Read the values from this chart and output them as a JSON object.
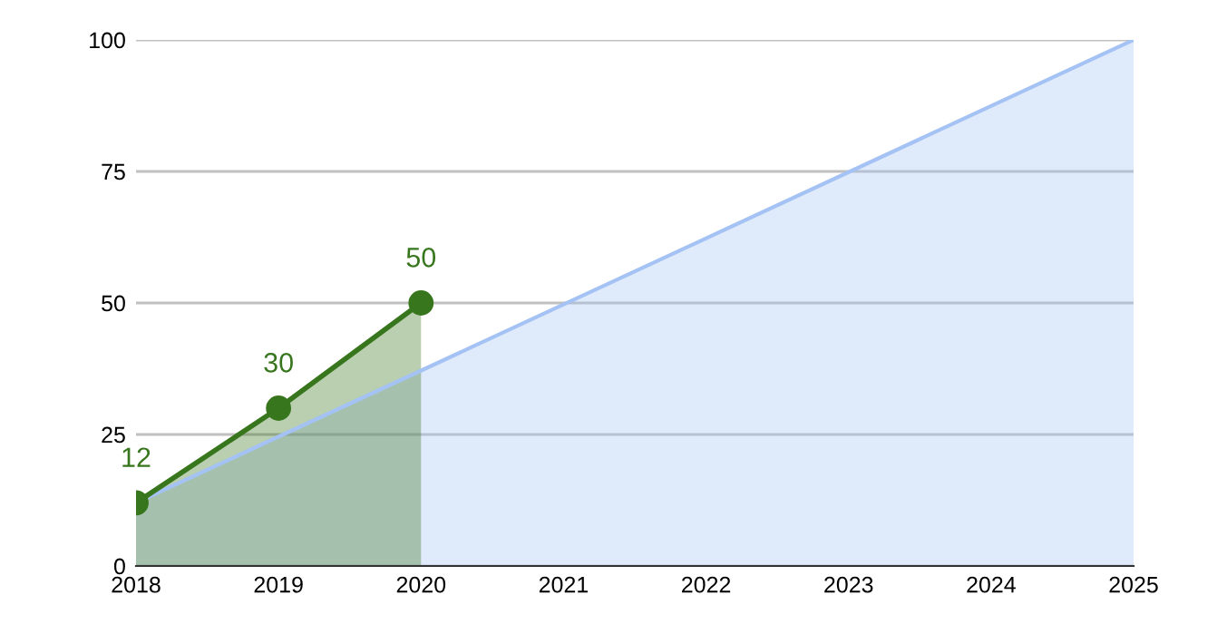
{
  "chart_data": {
    "type": "area",
    "series": [
      {
        "x": [
          2018,
          2025
        ],
        "values": [
          12,
          100
        ],
        "color": "#a4c2f4",
        "marker": "none"
      },
      {
        "x": [
          2018,
          2019,
          2020
        ],
        "values": [
          12,
          30,
          50
        ],
        "color": "#38761d",
        "marker": "circle",
        "value_labels": [
          "12",
          "30",
          "50"
        ]
      }
    ],
    "xlim": [
      2018,
      2025
    ],
    "xticks": [
      2018,
      2019,
      2020,
      2021,
      2022,
      2023,
      2024,
      2025
    ],
    "ylim": [
      0,
      100
    ],
    "yticks": [
      0,
      25,
      50,
      75,
      100
    ],
    "grid": "y",
    "legend": false
  }
}
